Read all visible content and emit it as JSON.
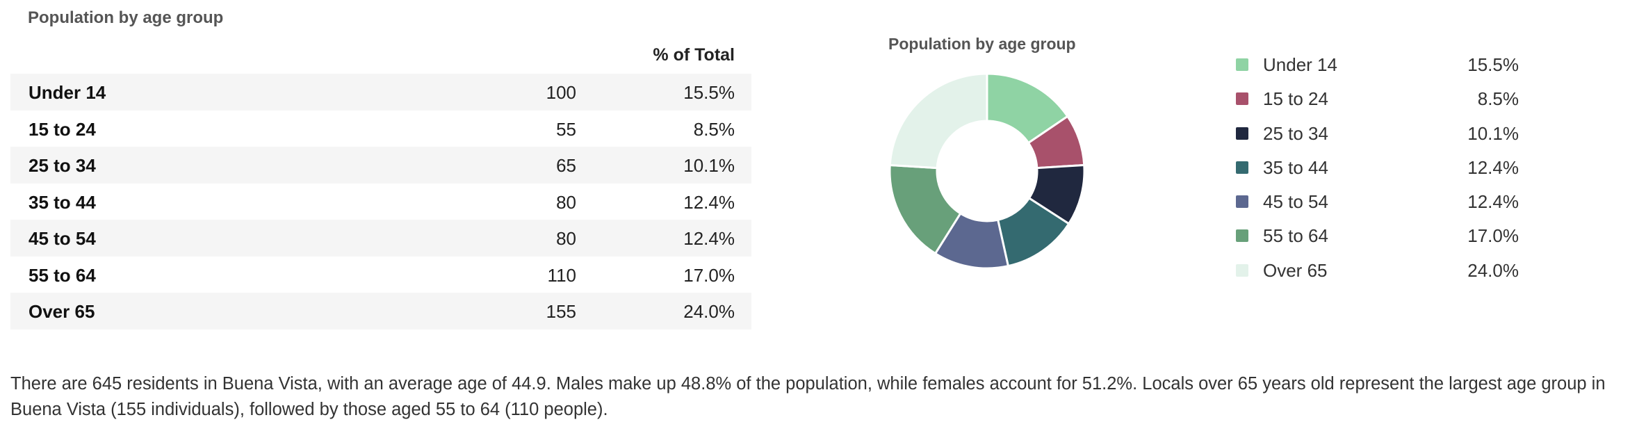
{
  "section_title": "Population by age group",
  "table": {
    "header_pct": "% of Total",
    "rows": [
      {
        "label": "Under 14",
        "count": "100",
        "pct": "15.5%"
      },
      {
        "label": "15 to 24",
        "count": "55",
        "pct": "8.5%"
      },
      {
        "label": "25 to 34",
        "count": "65",
        "pct": "10.1%"
      },
      {
        "label": "35 to 44",
        "count": "80",
        "pct": "12.4%"
      },
      {
        "label": "45 to 54",
        "count": "80",
        "pct": "12.4%"
      },
      {
        "label": "55 to 64",
        "count": "110",
        "pct": "17.0%"
      },
      {
        "label": "Over 65",
        "count": "155",
        "pct": "24.0%"
      }
    ]
  },
  "chart_data": {
    "type": "pie",
    "donut": true,
    "title": "Population by age group",
    "categories": [
      "Under 14",
      "15 to 24",
      "25 to 34",
      "35 to 44",
      "45 to 54",
      "55 to 64",
      "Over 65"
    ],
    "values": [
      100,
      55,
      65,
      80,
      80,
      110,
      155
    ],
    "percent_labels": [
      "15.5%",
      "8.5%",
      "10.1%",
      "12.4%",
      "12.4%",
      "17.0%",
      "24.0%"
    ],
    "colors": [
      "#8fd3a4",
      "#a8516b",
      "#20283f",
      "#346a70",
      "#5c6890",
      "#68a07a",
      "#e3f2ea"
    ],
    "legend_position": "right"
  },
  "summary": "There are 645 residents in Buena Vista, with an average age of 44.9. Males make up 48.8% of the population, while females account for 51.2%. Locals over 65 years old represent the largest age group in Buena Vista (155 individuals), followed by those aged 55 to 64 (110 people)."
}
